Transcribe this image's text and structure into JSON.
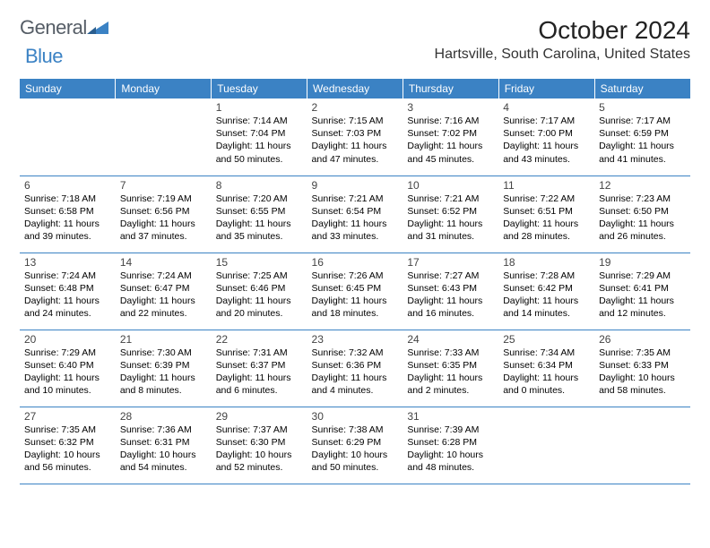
{
  "logo": {
    "text_general": "General",
    "text_blue": "Blue"
  },
  "header": {
    "month_title": "October 2024",
    "location": "Hartsville, South Carolina, United States"
  },
  "colors": {
    "header_bg": "#3b82c4",
    "header_text": "#ffffff",
    "grid_border": "#3b82c4",
    "body_text": "#000000",
    "logo_grey": "#555d66",
    "logo_blue": "#3b82c4"
  },
  "calendar": {
    "weekdays": [
      "Sunday",
      "Monday",
      "Tuesday",
      "Wednesday",
      "Thursday",
      "Friday",
      "Saturday"
    ],
    "first_weekday_index": 2,
    "days": [
      {
        "n": 1,
        "sunrise": "7:14 AM",
        "sunset": "7:04 PM",
        "daylight": "11 hours and 50 minutes."
      },
      {
        "n": 2,
        "sunrise": "7:15 AM",
        "sunset": "7:03 PM",
        "daylight": "11 hours and 47 minutes."
      },
      {
        "n": 3,
        "sunrise": "7:16 AM",
        "sunset": "7:02 PM",
        "daylight": "11 hours and 45 minutes."
      },
      {
        "n": 4,
        "sunrise": "7:17 AM",
        "sunset": "7:00 PM",
        "daylight": "11 hours and 43 minutes."
      },
      {
        "n": 5,
        "sunrise": "7:17 AM",
        "sunset": "6:59 PM",
        "daylight": "11 hours and 41 minutes."
      },
      {
        "n": 6,
        "sunrise": "7:18 AM",
        "sunset": "6:58 PM",
        "daylight": "11 hours and 39 minutes."
      },
      {
        "n": 7,
        "sunrise": "7:19 AM",
        "sunset": "6:56 PM",
        "daylight": "11 hours and 37 minutes."
      },
      {
        "n": 8,
        "sunrise": "7:20 AM",
        "sunset": "6:55 PM",
        "daylight": "11 hours and 35 minutes."
      },
      {
        "n": 9,
        "sunrise": "7:21 AM",
        "sunset": "6:54 PM",
        "daylight": "11 hours and 33 minutes."
      },
      {
        "n": 10,
        "sunrise": "7:21 AM",
        "sunset": "6:52 PM",
        "daylight": "11 hours and 31 minutes."
      },
      {
        "n": 11,
        "sunrise": "7:22 AM",
        "sunset": "6:51 PM",
        "daylight": "11 hours and 28 minutes."
      },
      {
        "n": 12,
        "sunrise": "7:23 AM",
        "sunset": "6:50 PM",
        "daylight": "11 hours and 26 minutes."
      },
      {
        "n": 13,
        "sunrise": "7:24 AM",
        "sunset": "6:48 PM",
        "daylight": "11 hours and 24 minutes."
      },
      {
        "n": 14,
        "sunrise": "7:24 AM",
        "sunset": "6:47 PM",
        "daylight": "11 hours and 22 minutes."
      },
      {
        "n": 15,
        "sunrise": "7:25 AM",
        "sunset": "6:46 PM",
        "daylight": "11 hours and 20 minutes."
      },
      {
        "n": 16,
        "sunrise": "7:26 AM",
        "sunset": "6:45 PM",
        "daylight": "11 hours and 18 minutes."
      },
      {
        "n": 17,
        "sunrise": "7:27 AM",
        "sunset": "6:43 PM",
        "daylight": "11 hours and 16 minutes."
      },
      {
        "n": 18,
        "sunrise": "7:28 AM",
        "sunset": "6:42 PM",
        "daylight": "11 hours and 14 minutes."
      },
      {
        "n": 19,
        "sunrise": "7:29 AM",
        "sunset": "6:41 PM",
        "daylight": "11 hours and 12 minutes."
      },
      {
        "n": 20,
        "sunrise": "7:29 AM",
        "sunset": "6:40 PM",
        "daylight": "11 hours and 10 minutes."
      },
      {
        "n": 21,
        "sunrise": "7:30 AM",
        "sunset": "6:39 PM",
        "daylight": "11 hours and 8 minutes."
      },
      {
        "n": 22,
        "sunrise": "7:31 AM",
        "sunset": "6:37 PM",
        "daylight": "11 hours and 6 minutes."
      },
      {
        "n": 23,
        "sunrise": "7:32 AM",
        "sunset": "6:36 PM",
        "daylight": "11 hours and 4 minutes."
      },
      {
        "n": 24,
        "sunrise": "7:33 AM",
        "sunset": "6:35 PM",
        "daylight": "11 hours and 2 minutes."
      },
      {
        "n": 25,
        "sunrise": "7:34 AM",
        "sunset": "6:34 PM",
        "daylight": "11 hours and 0 minutes."
      },
      {
        "n": 26,
        "sunrise": "7:35 AM",
        "sunset": "6:33 PM",
        "daylight": "10 hours and 58 minutes."
      },
      {
        "n": 27,
        "sunrise": "7:35 AM",
        "sunset": "6:32 PM",
        "daylight": "10 hours and 56 minutes."
      },
      {
        "n": 28,
        "sunrise": "7:36 AM",
        "sunset": "6:31 PM",
        "daylight": "10 hours and 54 minutes."
      },
      {
        "n": 29,
        "sunrise": "7:37 AM",
        "sunset": "6:30 PM",
        "daylight": "10 hours and 52 minutes."
      },
      {
        "n": 30,
        "sunrise": "7:38 AM",
        "sunset": "6:29 PM",
        "daylight": "10 hours and 50 minutes."
      },
      {
        "n": 31,
        "sunrise": "7:39 AM",
        "sunset": "6:28 PM",
        "daylight": "10 hours and 48 minutes."
      }
    ],
    "labels": {
      "sunrise": "Sunrise:",
      "sunset": "Sunset:",
      "daylight": "Daylight:"
    }
  }
}
